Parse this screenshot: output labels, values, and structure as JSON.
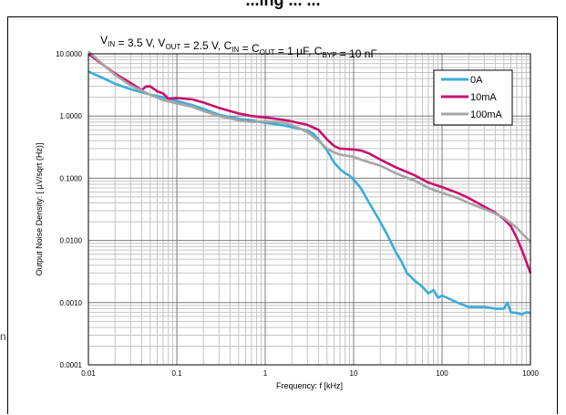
{
  "page": {
    "top_heading": "...ing ... ...",
    "margin_mark": "n"
  },
  "chart_data": {
    "type": "line",
    "title": "V_IN = 3.5 V, V_OUT = 2.5 V, C_IN = C_OUT = 1 µF, C_BYP = 10 nF",
    "title_runs": [
      {
        "t": "V",
        "sub": false
      },
      {
        "t": "IN",
        "sub": true
      },
      {
        "t": " = 3.5 V, V",
        "sub": false
      },
      {
        "t": "OUT",
        "sub": true
      },
      {
        "t": " = 2.5 V, C",
        "sub": false
      },
      {
        "t": "IN",
        "sub": true
      },
      {
        "t": " = C",
        "sub": false
      },
      {
        "t": "OUT",
        "sub": true
      },
      {
        "t": " = 1 µF, C",
        "sub": false
      },
      {
        "t": "BYP",
        "sub": true
      },
      {
        "t": " = 10 nF",
        "sub": false
      }
    ],
    "xlabel": "Frequency: f [kHz]",
    "ylabel": "Output Noise Density: [ µV/sqrt (Hz)]",
    "xscale": "log",
    "yscale": "log",
    "xlim": [
      0.01,
      1000
    ],
    "ylim": [
      0.0001,
      10
    ],
    "xticks": [
      0.01,
      0.1,
      1,
      10,
      100,
      1000
    ],
    "xtick_labels": [
      "0.01",
      "0.1",
      "1",
      "10",
      "100",
      "1000"
    ],
    "yticks": [
      0.0001,
      0.001,
      0.01,
      0.1,
      1,
      10
    ],
    "ytick_labels": [
      "0.0001",
      "0.0010",
      "0.0100",
      "0.1000",
      "1.0000",
      "10.0000"
    ],
    "grid": true,
    "legend_position": "top-right",
    "series": [
      {
        "name": "0A",
        "color": "#3aacd8",
        "points": [
          [
            0.01,
            5.2
          ],
          [
            0.015,
            4.0
          ],
          [
            0.02,
            3.3
          ],
          [
            0.03,
            2.7
          ],
          [
            0.05,
            2.2
          ],
          [
            0.07,
            2.0
          ],
          [
            0.1,
            1.75
          ],
          [
            0.15,
            1.5
          ],
          [
            0.2,
            1.3
          ],
          [
            0.3,
            1.05
          ],
          [
            0.5,
            0.9
          ],
          [
            0.7,
            0.85
          ],
          [
            1,
            0.78
          ],
          [
            1.5,
            0.72
          ],
          [
            2,
            0.66
          ],
          [
            2.5,
            0.62
          ],
          [
            3,
            0.58
          ],
          [
            3.5,
            0.52
          ],
          [
            4,
            0.42
          ],
          [
            5,
            0.28
          ],
          [
            6,
            0.18
          ],
          [
            7,
            0.14
          ],
          [
            8,
            0.12
          ],
          [
            9,
            0.11
          ],
          [
            10,
            0.095
          ],
          [
            12,
            0.07
          ],
          [
            15,
            0.04
          ],
          [
            20,
            0.02
          ],
          [
            25,
            0.011
          ],
          [
            30,
            0.0065
          ],
          [
            35,
            0.0045
          ],
          [
            40,
            0.003
          ],
          [
            50,
            0.0022
          ],
          [
            60,
            0.0018
          ],
          [
            70,
            0.0014
          ],
          [
            80,
            0.0016
          ],
          [
            90,
            0.0012
          ],
          [
            100,
            0.0013
          ],
          [
            150,
            0.001
          ],
          [
            200,
            0.00085
          ],
          [
            300,
            0.00085
          ],
          [
            400,
            0.0008
          ],
          [
            500,
            0.0008
          ],
          [
            550,
            0.001
          ],
          [
            600,
            0.0007
          ],
          [
            700,
            0.00068
          ],
          [
            800,
            0.00065
          ],
          [
            900,
            0.0007
          ],
          [
            1000,
            0.00068
          ]
        ]
      },
      {
        "name": "10mA",
        "color": "#c8106e",
        "points": [
          [
            0.01,
            10
          ],
          [
            0.015,
            6.5
          ],
          [
            0.02,
            4.8
          ],
          [
            0.03,
            3.4
          ],
          [
            0.04,
            2.6
          ],
          [
            0.045,
            3.0
          ],
          [
            0.05,
            3.0
          ],
          [
            0.06,
            2.5
          ],
          [
            0.07,
            2.3
          ],
          [
            0.08,
            1.9
          ],
          [
            0.1,
            1.95
          ],
          [
            0.15,
            1.85
          ],
          [
            0.2,
            1.65
          ],
          [
            0.3,
            1.35
          ],
          [
            0.5,
            1.1
          ],
          [
            0.7,
            1.0
          ],
          [
            1,
            0.95
          ],
          [
            1.5,
            0.88
          ],
          [
            2,
            0.82
          ],
          [
            3,
            0.72
          ],
          [
            4,
            0.6
          ],
          [
            5,
            0.42
          ],
          [
            6,
            0.33
          ],
          [
            7,
            0.3
          ],
          [
            10,
            0.29
          ],
          [
            12,
            0.28
          ],
          [
            15,
            0.25
          ],
          [
            20,
            0.2
          ],
          [
            30,
            0.15
          ],
          [
            50,
            0.11
          ],
          [
            70,
            0.085
          ],
          [
            100,
            0.072
          ],
          [
            150,
            0.058
          ],
          [
            200,
            0.048
          ],
          [
            300,
            0.035
          ],
          [
            400,
            0.028
          ],
          [
            500,
            0.022
          ],
          [
            600,
            0.017
          ],
          [
            700,
            0.011
          ],
          [
            800,
            0.007
          ],
          [
            900,
            0.0045
          ],
          [
            1000,
            0.003
          ]
        ]
      },
      {
        "name": "100mA",
        "color": "#a6a6a6",
        "points": [
          [
            0.01,
            11
          ],
          [
            0.015,
            6.5
          ],
          [
            0.02,
            4.6
          ],
          [
            0.03,
            3.1
          ],
          [
            0.05,
            2.2
          ],
          [
            0.07,
            1.8
          ],
          [
            0.1,
            1.6
          ],
          [
            0.15,
            1.4
          ],
          [
            0.2,
            1.2
          ],
          [
            0.3,
            1.0
          ],
          [
            0.5,
            0.85
          ],
          [
            0.7,
            0.8
          ],
          [
            1,
            0.82
          ],
          [
            1.5,
            0.8
          ],
          [
            2,
            0.72
          ],
          [
            3,
            0.55
          ],
          [
            4,
            0.4
          ],
          [
            5,
            0.3
          ],
          [
            6,
            0.26
          ],
          [
            7,
            0.24
          ],
          [
            10,
            0.22
          ],
          [
            12,
            0.2
          ],
          [
            15,
            0.18
          ],
          [
            20,
            0.16
          ],
          [
            30,
            0.12
          ],
          [
            50,
            0.09
          ],
          [
            70,
            0.07
          ],
          [
            100,
            0.058
          ],
          [
            150,
            0.048
          ],
          [
            200,
            0.04
          ],
          [
            300,
            0.032
          ],
          [
            400,
            0.027
          ],
          [
            500,
            0.023
          ],
          [
            600,
            0.019
          ],
          [
            700,
            0.016
          ],
          [
            800,
            0.013
          ],
          [
            900,
            0.011
          ],
          [
            1000,
            0.0095
          ]
        ]
      }
    ]
  }
}
